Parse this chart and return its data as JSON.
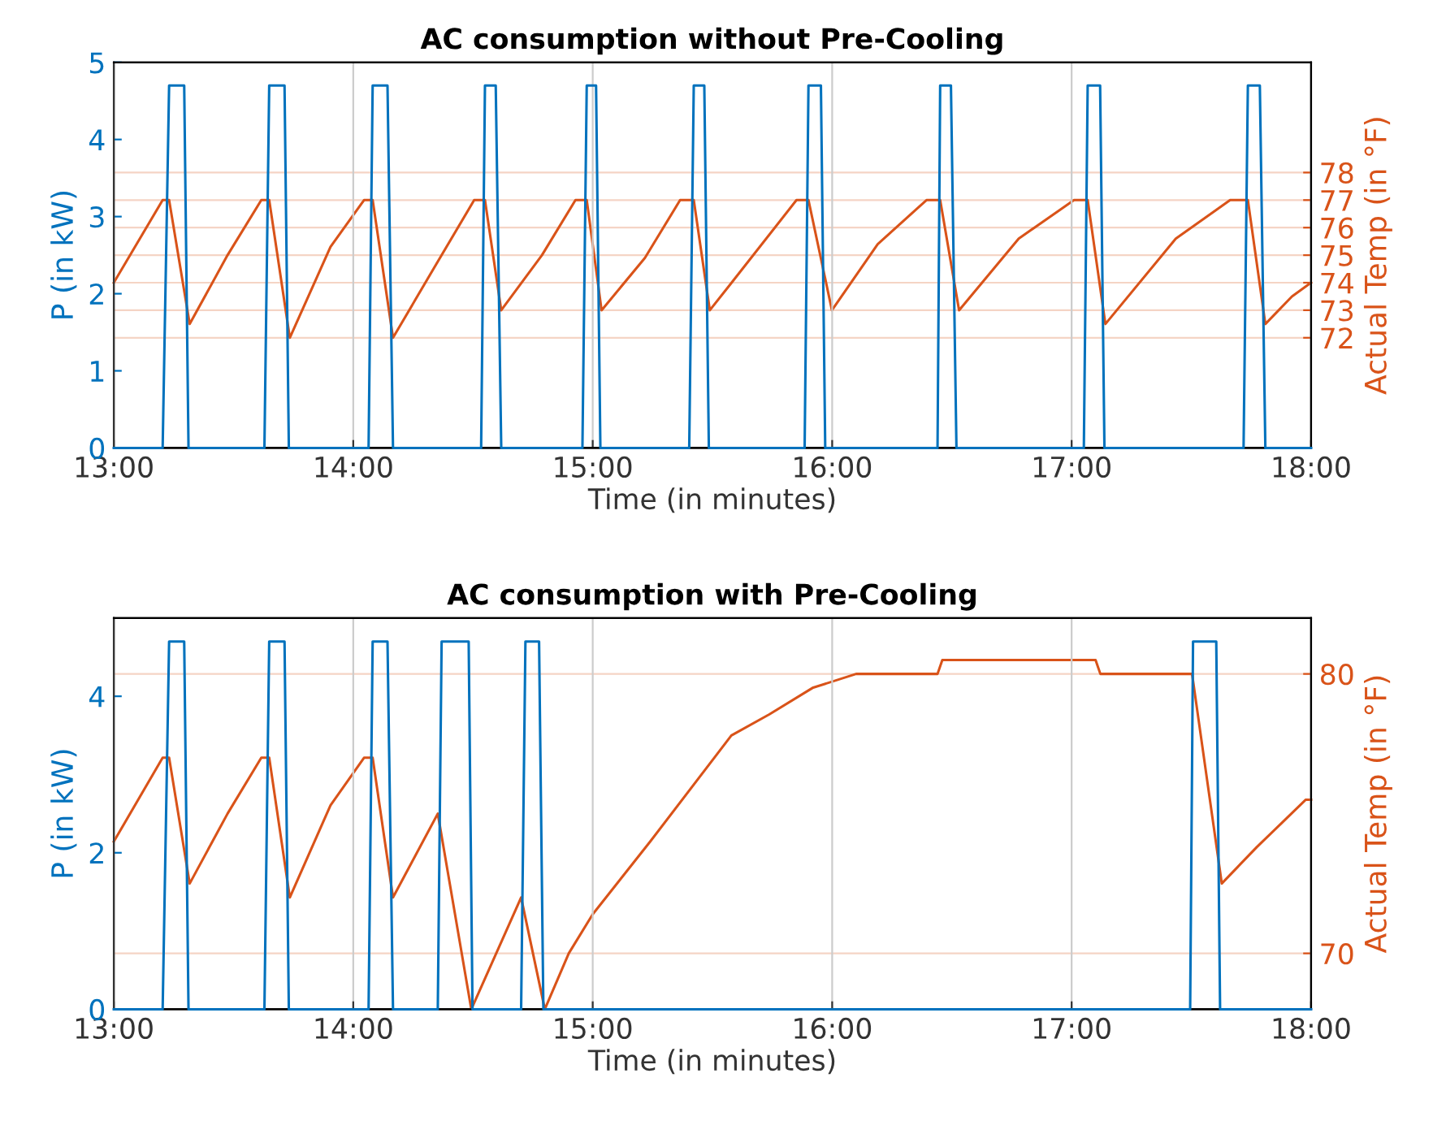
{
  "chart_data": [
    {
      "type": "line",
      "title": "AC consumption without Pre-Cooling",
      "xlabel": "Time (in minutes)",
      "ylabel": "P (in kW)",
      "y2label": "Actual Temp (in °F)",
      "xlim": [
        13,
        18
      ],
      "xticks": [
        {
          "value": 13,
          "label": "13:00"
        },
        {
          "value": 14,
          "label": "14:00"
        },
        {
          "value": 15,
          "label": "15:00"
        },
        {
          "value": 16,
          "label": "16:00"
        },
        {
          "value": 17,
          "label": "17:00"
        },
        {
          "value": 18,
          "label": "18:00"
        }
      ],
      "ylim": [
        0,
        5
      ],
      "yticks": [
        0,
        1,
        2,
        3,
        4,
        5
      ],
      "y2lim": [
        68,
        82
      ],
      "y2ticks": [
        72,
        73,
        74,
        75,
        76,
        77,
        78
      ],
      "grid": true,
      "line_style": "solid",
      "series": [
        {
          "color": "#0072bd",
          "x": [
            13,
            13.204,
            13.231,
            13.294,
            13.312,
            13.629,
            13.649,
            13.713,
            13.731,
            14.064,
            14.081,
            14.143,
            14.166,
            14.534,
            14.55,
            14.595,
            14.618,
            14.957,
            14.975,
            15.014,
            15.032,
            15.403,
            15.422,
            15.466,
            15.485,
            15.885,
            15.901,
            15.953,
            15.971,
            16.44,
            16.451,
            16.496,
            16.519,
            17.051,
            17.067,
            17.119,
            17.137,
            17.718,
            17.736,
            17.786,
            17.809,
            18
          ],
          "values": [
            0,
            0,
            4.7,
            4.7,
            0,
            0,
            4.7,
            4.7,
            0,
            0,
            4.7,
            4.7,
            0,
            0,
            4.7,
            4.7,
            0,
            0,
            4.7,
            4.7,
            0,
            0,
            4.7,
            4.7,
            0,
            0,
            4.7,
            4.7,
            0,
            0,
            4.7,
            4.7,
            0,
            0,
            4.7,
            4.7,
            0,
            0,
            4.7,
            4.7,
            0,
            0
          ]
        },
        {
          "color": "#d95319",
          "axis": "y2",
          "x": [
            13,
            13.204,
            13.231,
            13.317,
            13.475,
            13.616,
            13.649,
            13.735,
            13.905,
            14.045,
            14.081,
            14.166,
            14.335,
            14.505,
            14.55,
            14.618,
            14.788,
            14.928,
            14.975,
            15.037,
            15.218,
            15.365,
            15.422,
            15.489,
            15.58,
            15.851,
            15.901,
            15.999,
            16.19,
            16.394,
            16.451,
            16.53,
            16.779,
            17.01,
            17.067,
            17.141,
            17.435,
            17.662,
            17.736,
            17.809,
            17.92,
            18
          ],
          "values": [
            74,
            77,
            77,
            72.5,
            75,
            77,
            77,
            72,
            75.3,
            77,
            77,
            72,
            74.5,
            77,
            77,
            73,
            75,
            77,
            77,
            73,
            74.9,
            77,
            77,
            73,
            74,
            77,
            77,
            73,
            75.4,
            77,
            77,
            73,
            75.6,
            77,
            77,
            72.5,
            75.6,
            77,
            77,
            72.5,
            73.5,
            74
          ]
        }
      ]
    },
    {
      "type": "line",
      "title": "AC consumption with Pre-Cooling",
      "xlabel": "Time (in minutes)",
      "ylabel": "P (in kW)",
      "y2label": "Actual Temp (in °F)",
      "xlim": [
        13,
        18
      ],
      "xticks": [
        {
          "value": 13,
          "label": "13:00"
        },
        {
          "value": 14,
          "label": "14:00"
        },
        {
          "value": 15,
          "label": "15:00"
        },
        {
          "value": 16,
          "label": "16:00"
        },
        {
          "value": 17,
          "label": "17:00"
        },
        {
          "value": 18,
          "label": "18:00"
        }
      ],
      "ylim": [
        0,
        5
      ],
      "yticks": [
        0,
        2,
        4
      ],
      "y2lim": [
        68,
        82
      ],
      "y2ticks": [
        70,
        80
      ],
      "grid": true,
      "line_style": "solid",
      "series": [
        {
          "color": "#0072bd",
          "x": [
            13,
            13.204,
            13.231,
            13.294,
            13.312,
            13.629,
            13.649,
            13.713,
            13.731,
            14.064,
            14.081,
            14.143,
            14.166,
            14.353,
            14.369,
            14.482,
            14.498,
            14.701,
            14.719,
            14.776,
            14.794,
            17.495,
            17.507,
            17.604,
            17.62,
            18
          ],
          "values": [
            0,
            0,
            4.7,
            4.7,
            0,
            0,
            4.7,
            4.7,
            0,
            0,
            4.7,
            4.7,
            0,
            0,
            4.7,
            4.7,
            0,
            0,
            4.7,
            4.7,
            0,
            0,
            4.7,
            4.7,
            0,
            0
          ]
        },
        {
          "color": "#d95319",
          "axis": "y2",
          "x": [
            13,
            13.204,
            13.231,
            13.317,
            13.475,
            13.616,
            13.649,
            13.735,
            13.905,
            14.045,
            14.081,
            14.166,
            14.353,
            14.493,
            14.701,
            14.8,
            14.9,
            15.0,
            15.24,
            15.579,
            15.737,
            15.918,
            16.1,
            16.44,
            16.46,
            17.1,
            17.12,
            17.503,
            17.627,
            17.773,
            17.978,
            18
          ],
          "values": [
            74,
            77,
            77,
            72.5,
            75,
            77,
            77,
            72,
            75.3,
            77,
            77,
            72,
            75,
            68,
            72,
            68,
            70,
            71.4,
            74,
            77.8,
            78.55,
            79.5,
            80,
            80,
            80.5,
            80.5,
            80,
            80,
            72.5,
            73.8,
            75.5,
            75.5
          ]
        }
      ]
    }
  ]
}
